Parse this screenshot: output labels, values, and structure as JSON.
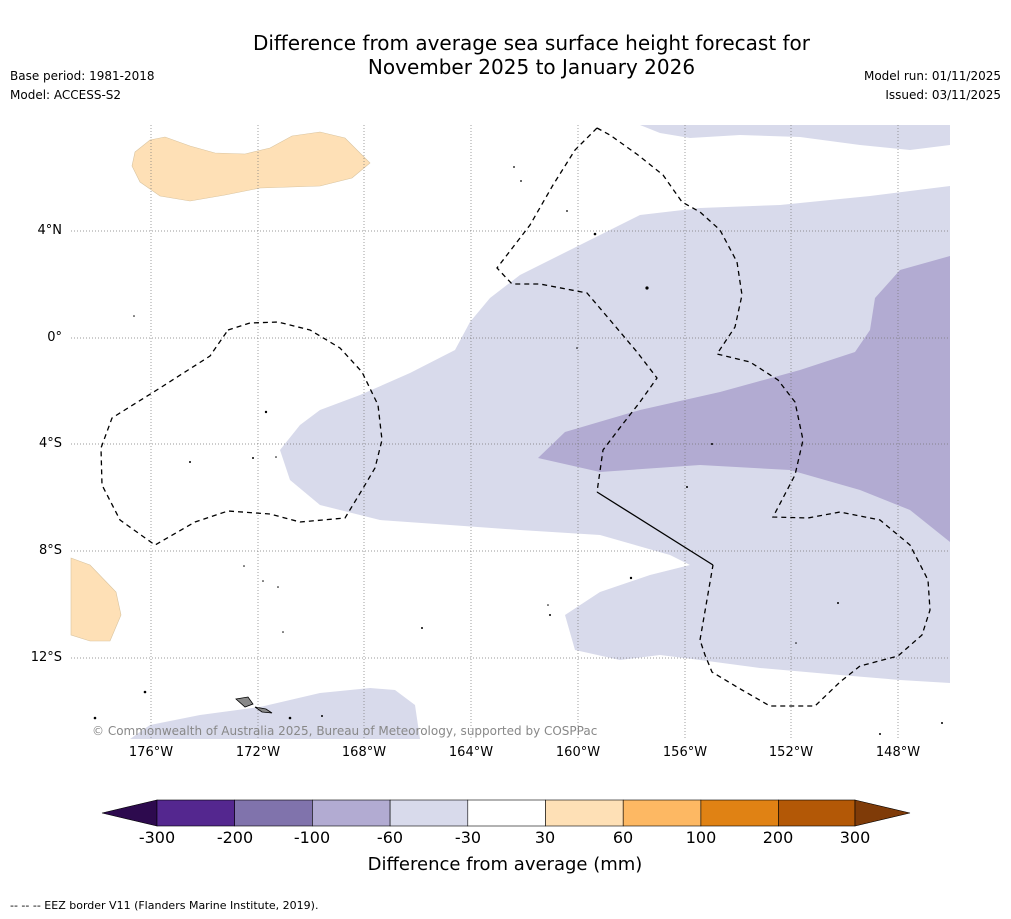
{
  "title_line1": "Difference from average sea surface height forecast for",
  "title_line2": "November 2025 to January 2026",
  "base_period": "Base period: 1981-2018",
  "model": "Model: ACCESS-S2",
  "model_run": "Model run: 01/11/2025",
  "issued": "Issued: 03/11/2025",
  "lat_labels": [
    "4°N",
    "0°",
    "4°S",
    "8°S",
    "12°S"
  ],
  "lon_labels": [
    "176°W",
    "172°W",
    "168°W",
    "164°W",
    "160°W",
    "156°W",
    "152°W",
    "148°W"
  ],
  "copyright": "© Commonwealth of Australia 2025, Bureau of Meteorology, supported by COSPPac",
  "colorbar": {
    "title": "Difference from average (mm)",
    "ticks": [
      "-300",
      "-200",
      "-100",
      "-60",
      "-30",
      "30",
      "60",
      "100",
      "200",
      "300"
    ],
    "colors": [
      "#2d0a4e",
      "#54278f",
      "#8073ac",
      "#b2abd2",
      "#d8daeb",
      "#ffffff",
      "#fee0b6",
      "#fdb863",
      "#e08214",
      "#b35806",
      "#7f3b08"
    ]
  },
  "footnote": "--  --  -- EEZ border V11 (Flanders Marine Institute, 2019)."
}
